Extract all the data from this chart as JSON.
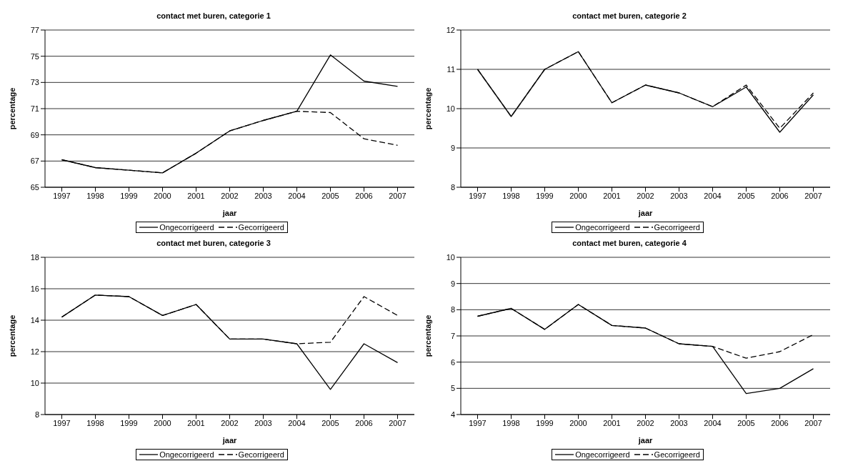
{
  "chart_data": [
    {
      "type": "line",
      "title": "contact met buren, categorie 1",
      "xlabel": "jaar",
      "ylabel": "percentage",
      "categories": [
        "1997",
        "1998",
        "1999",
        "2000",
        "2001",
        "2002",
        "2003",
        "2004",
        "2005",
        "2006",
        "2007"
      ],
      "ylim": [
        65,
        77
      ],
      "yticks": [
        65,
        67,
        69,
        71,
        73,
        75,
        77
      ],
      "grid": "y",
      "legend": "bottom",
      "marker": "none",
      "series": [
        {
          "name": "Ongecorrigeerd",
          "color": "#000000",
          "line_style": "solid",
          "values": [
            67.1,
            66.5,
            66.3,
            66.1,
            67.6,
            69.3,
            70.1,
            70.8,
            75.1,
            73.1,
            72.7
          ]
        },
        {
          "name": "Gecorrigeerd",
          "color": "#000000",
          "line_style": "dashed",
          "values": [
            67.1,
            66.5,
            66.3,
            66.1,
            67.6,
            69.3,
            70.1,
            70.8,
            70.7,
            68.7,
            68.2
          ]
        }
      ]
    },
    {
      "type": "line",
      "title": "contact met buren, categorie 2",
      "xlabel": "jaar",
      "ylabel": "percentage",
      "categories": [
        "1997",
        "1998",
        "1999",
        "2000",
        "2001",
        "2002",
        "2003",
        "2004",
        "2005",
        "2006",
        "2007"
      ],
      "ylim": [
        8,
        12
      ],
      "yticks": [
        8,
        9,
        10,
        11,
        12
      ],
      "grid": "y",
      "legend": "bottom",
      "marker": "none",
      "series": [
        {
          "name": "Ongecorrigeerd",
          "color": "#000000",
          "line_style": "solid",
          "values": [
            11.0,
            9.8,
            11.0,
            11.45,
            10.15,
            10.6,
            10.4,
            10.05,
            10.55,
            9.4,
            10.35
          ]
        },
        {
          "name": "Gecorrigeerd",
          "color": "#000000",
          "line_style": "dashed",
          "values": [
            11.0,
            9.8,
            11.0,
            11.45,
            10.15,
            10.6,
            10.4,
            10.05,
            10.6,
            9.5,
            10.4
          ]
        }
      ]
    },
    {
      "type": "line",
      "title": "contact met buren, categorie 3",
      "xlabel": "jaar",
      "ylabel": "percentage",
      "categories": [
        "1997",
        "1998",
        "1999",
        "2000",
        "2001",
        "2002",
        "2003",
        "2004",
        "2005",
        "2006",
        "2007"
      ],
      "ylim": [
        8,
        18
      ],
      "yticks": [
        8,
        10,
        12,
        14,
        16,
        18
      ],
      "grid": "y",
      "legend": "bottom",
      "marker": "none",
      "series": [
        {
          "name": "Ongecorrigeerd",
          "color": "#000000",
          "line_style": "solid",
          "values": [
            14.2,
            15.6,
            15.5,
            14.3,
            15.0,
            12.8,
            12.8,
            12.5,
            9.6,
            12.5,
            11.3
          ]
        },
        {
          "name": "Gecorrigeerd",
          "color": "#000000",
          "line_style": "dashed",
          "values": [
            14.2,
            15.6,
            15.5,
            14.3,
            15.0,
            12.8,
            12.8,
            12.5,
            12.6,
            15.5,
            14.3
          ]
        }
      ]
    },
    {
      "type": "line",
      "title": "contact met buren, categorie 4",
      "xlabel": "jaar",
      "ylabel": "percentage",
      "categories": [
        "1997",
        "1998",
        "1999",
        "2000",
        "2001",
        "2002",
        "2003",
        "2004",
        "2005",
        "2006",
        "2007"
      ],
      "ylim": [
        4,
        10
      ],
      "yticks": [
        4,
        5,
        6,
        7,
        8,
        9,
        10
      ],
      "grid": "y",
      "legend": "bottom",
      "marker": "none",
      "series": [
        {
          "name": "Ongecorrigeerd",
          "color": "#000000",
          "line_style": "solid",
          "values": [
            7.75,
            8.05,
            7.25,
            8.2,
            7.4,
            7.3,
            6.7,
            6.6,
            4.8,
            5.0,
            5.75
          ]
        },
        {
          "name": "Gecorrigeerd",
          "color": "#000000",
          "line_style": "dashed",
          "values": [
            7.75,
            8.05,
            7.25,
            8.2,
            7.4,
            7.3,
            6.7,
            6.6,
            6.15,
            6.4,
            7.05
          ]
        }
      ]
    }
  ]
}
